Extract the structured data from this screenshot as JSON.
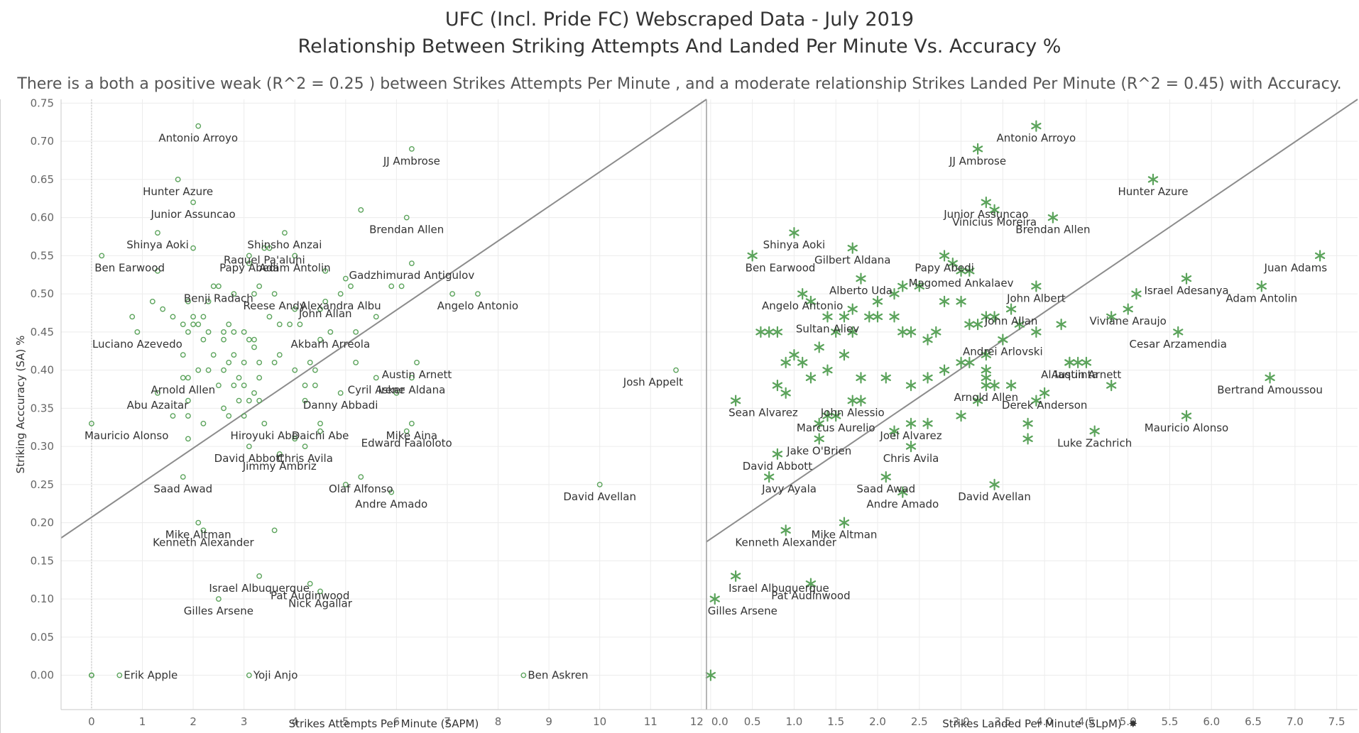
{
  "header": {
    "title_line1": "UFC (Incl. Pride FC) Webscraped Data - July 2019",
    "title_line2": "Relationship Between Striking Attempts And Landed Per Minute Vs. Accuracy %",
    "subtitle": "There is a both a positive weak (R^2 = 0.25 ) between Strikes Attempts Per Minute , and a moderate relationship Strikes Landed Per Minute (R^2 = 0.45) with Accuracy."
  },
  "colors": {
    "marker": "#5ba35b",
    "trend": "#8c8c8c",
    "grid": "#ececec",
    "axis": "#c8c8c8"
  },
  "chart_data": [
    {
      "type": "scatter",
      "marker": "circle-open",
      "xlabel": "Strikes Attempts Per Minute (SAPM)",
      "ylabel": "Striking Acccuracy (SA) %",
      "xlim": [
        -0.6,
        12.1
      ],
      "ylim": [
        -0.045,
        0.755
      ],
      "xticks": [
        "0",
        "1",
        "2",
        "3",
        "4",
        "5",
        "6",
        "7",
        "8",
        "9",
        "10",
        "11",
        "12"
      ],
      "yticks": [
        "0.00",
        "0.05",
        "0.10",
        "0.15",
        "0.20",
        "0.25",
        "0.30",
        "0.35",
        "0.40",
        "0.45",
        "0.50",
        "0.55",
        "0.60",
        "0.65",
        "0.70",
        "0.75"
      ],
      "trendline": [
        [
          -0.6,
          0.18
        ],
        [
          12.1,
          0.755
        ]
      ],
      "labeled_points": [
        {
          "name": "Antonio Arroyo",
          "x": 2.1,
          "y": 0.72
        },
        {
          "name": "JJ Ambrose",
          "x": 6.3,
          "y": 0.69
        },
        {
          "name": "Hunter Azure",
          "x": 1.7,
          "y": 0.65
        },
        {
          "name": "Junior Assuncao",
          "x": 2.0,
          "y": 0.62
        },
        {
          "name": "Brendan Allen",
          "x": 6.2,
          "y": 0.6
        },
        {
          "name": "Shinya Aoki",
          "x": 1.3,
          "y": 0.58
        },
        {
          "name": "Shinsho Anzai",
          "x": 3.8,
          "y": 0.58
        },
        {
          "name": "Raquel Pa'aluhi",
          "x": 3.4,
          "y": 0.56
        },
        {
          "name": "Papy Abedi",
          "x": 3.1,
          "y": 0.55
        },
        {
          "name": "Ben Earwood",
          "x": 0.2,
          "y": 0.55
        },
        {
          "name": "Adam Antolin",
          "x": 4.0,
          "y": 0.55
        },
        {
          "name": "Gadzhimurad Antigulov",
          "x": 6.3,
          "y": 0.54
        },
        {
          "name": "Benji Radach",
          "x": 2.5,
          "y": 0.51
        },
        {
          "name": "Reese Andy",
          "x": 3.6,
          "y": 0.5
        },
        {
          "name": "Angelo Antonio",
          "x": 7.6,
          "y": 0.5
        },
        {
          "name": "Alexandra Albu",
          "x": 4.9,
          "y": 0.5
        },
        {
          "name": "John Allan",
          "x": 4.6,
          "y": 0.49
        },
        {
          "name": "Luciano Azevedo",
          "x": 0.9,
          "y": 0.45
        },
        {
          "name": "Akbarh Arreola",
          "x": 4.7,
          "y": 0.45
        },
        {
          "name": "Austin Arnett",
          "x": 6.4,
          "y": 0.41
        },
        {
          "name": "Arnold Allen",
          "x": 1.8,
          "y": 0.39
        },
        {
          "name": "Cyril Asker",
          "x": 5.6,
          "y": 0.39
        },
        {
          "name": "Irene Aldana",
          "x": 6.3,
          "y": 0.39
        },
        {
          "name": "Josh Appelt",
          "x": 11.5,
          "y": 0.4
        },
        {
          "name": "Danny Abbadi",
          "x": 4.9,
          "y": 0.37
        },
        {
          "name": "Abu Azaitar",
          "x": 1.3,
          "y": 0.37
        },
        {
          "name": "Hiroyuki Abe",
          "x": 3.4,
          "y": 0.33
        },
        {
          "name": "Mauricio Alonso",
          "x": 0.0,
          "y": 0.33
        },
        {
          "name": "Daichi Abe",
          "x": 4.5,
          "y": 0.33
        },
        {
          "name": "Mike Aina",
          "x": 6.3,
          "y": 0.33
        },
        {
          "name": "David Abbott",
          "x": 3.1,
          "y": 0.3
        },
        {
          "name": "Chris Avila",
          "x": 4.2,
          "y": 0.3
        },
        {
          "name": "Edward Faaloloto",
          "x": 6.2,
          "y": 0.32
        },
        {
          "name": "Jimmy Ambriz",
          "x": 3.7,
          "y": 0.29
        },
        {
          "name": "Olaf Alfonso",
          "x": 5.3,
          "y": 0.26
        },
        {
          "name": "Saad Awad",
          "x": 1.8,
          "y": 0.26
        },
        {
          "name": "Andre Amado",
          "x": 5.9,
          "y": 0.24
        },
        {
          "name": "David Avellan",
          "x": 10.0,
          "y": 0.25
        },
        {
          "name": "Mike Altman",
          "x": 2.1,
          "y": 0.2
        },
        {
          "name": "Kenneth Alexander",
          "x": 2.2,
          "y": 0.19
        },
        {
          "name": "Israel Albuquerque",
          "x": 3.3,
          "y": 0.13
        },
        {
          "name": "Pat Audinwood",
          "x": 4.3,
          "y": 0.12
        },
        {
          "name": "Nick Agallar",
          "x": 4.5,
          "y": 0.11
        },
        {
          "name": "Gilles Arsene",
          "x": 2.5,
          "y": 0.1
        },
        {
          "name": "Erik Apple",
          "x": 0.55,
          "y": 0.0
        },
        {
          "name": "Yoji Anjo",
          "x": 3.1,
          "y": 0.0
        },
        {
          "name": "Ben Askren",
          "x": 8.5,
          "y": 0.0
        }
      ],
      "other_points": [
        [
          5.3,
          0.61
        ],
        [
          3.5,
          0.56
        ],
        [
          2.0,
          0.56
        ],
        [
          1.3,
          0.53
        ],
        [
          3.1,
          0.54
        ],
        [
          4.6,
          0.53
        ],
        [
          2.4,
          0.51
        ],
        [
          2.8,
          0.5
        ],
        [
          3.3,
          0.51
        ],
        [
          5.1,
          0.51
        ],
        [
          5.0,
          0.52
        ],
        [
          5.9,
          0.51
        ],
        [
          6.1,
          0.51
        ],
        [
          7.1,
          0.5
        ],
        [
          1.2,
          0.49
        ],
        [
          1.9,
          0.49
        ],
        [
          2.3,
          0.49
        ],
        [
          3.2,
          0.5
        ],
        [
          4.0,
          0.48
        ],
        [
          4.5,
          0.48
        ],
        [
          5.6,
          0.47
        ],
        [
          1.4,
          0.48
        ],
        [
          2.0,
          0.47
        ],
        [
          2.1,
          0.46
        ],
        [
          2.2,
          0.47
        ],
        [
          2.7,
          0.46
        ],
        [
          3.5,
          0.47
        ],
        [
          3.9,
          0.46
        ],
        [
          0.8,
          0.47
        ],
        [
          1.6,
          0.47
        ],
        [
          1.8,
          0.46
        ],
        [
          2.0,
          0.46
        ],
        [
          2.3,
          0.45
        ],
        [
          2.6,
          0.45
        ],
        [
          2.8,
          0.45
        ],
        [
          3.0,
          0.45
        ],
        [
          3.7,
          0.46
        ],
        [
          4.1,
          0.46
        ],
        [
          5.2,
          0.45
        ],
        [
          1.9,
          0.45
        ],
        [
          2.2,
          0.44
        ],
        [
          2.6,
          0.44
        ],
        [
          3.1,
          0.44
        ],
        [
          3.2,
          0.44
        ],
        [
          4.5,
          0.44
        ],
        [
          1.8,
          0.42
        ],
        [
          2.4,
          0.42
        ],
        [
          2.8,
          0.42
        ],
        [
          3.2,
          0.43
        ],
        [
          3.7,
          0.42
        ],
        [
          2.3,
          0.4
        ],
        [
          2.7,
          0.41
        ],
        [
          3.0,
          0.41
        ],
        [
          3.3,
          0.41
        ],
        [
          3.6,
          0.41
        ],
        [
          4.3,
          0.41
        ],
        [
          5.2,
          0.41
        ],
        [
          1.9,
          0.39
        ],
        [
          2.1,
          0.4
        ],
        [
          2.6,
          0.4
        ],
        [
          2.9,
          0.39
        ],
        [
          3.3,
          0.39
        ],
        [
          4.0,
          0.4
        ],
        [
          4.4,
          0.4
        ],
        [
          2.5,
          0.38
        ],
        [
          2.8,
          0.38
        ],
        [
          3.0,
          0.38
        ],
        [
          3.2,
          0.37
        ],
        [
          4.2,
          0.38
        ],
        [
          4.4,
          0.38
        ],
        [
          6.0,
          0.37
        ],
        [
          2.9,
          0.36
        ],
        [
          3.1,
          0.36
        ],
        [
          3.3,
          0.36
        ],
        [
          4.2,
          0.36
        ],
        [
          1.9,
          0.36
        ],
        [
          2.6,
          0.35
        ],
        [
          2.7,
          0.34
        ],
        [
          3.0,
          0.34
        ],
        [
          1.6,
          0.34
        ],
        [
          1.9,
          0.34
        ],
        [
          2.2,
          0.33
        ],
        [
          4.5,
          0.32
        ],
        [
          1.9,
          0.31
        ],
        [
          4.0,
          0.31
        ],
        [
          5.0,
          0.25
        ],
        [
          3.6,
          0.19
        ],
        [
          0.0,
          0.0
        ],
        [
          0.0,
          0.0
        ],
        [
          0.0,
          0.0
        ]
      ]
    },
    {
      "type": "scatter",
      "marker": "asterisk",
      "xlabel": "Strikes Landed Per Minute (SLpM)",
      "ylabel": "",
      "xlim": [
        -0.05,
        7.75
      ],
      "ylim": [
        -0.045,
        0.755
      ],
      "xticks": [
        "0.0",
        "0.5",
        "1.0",
        "1.5",
        "2.0",
        "2.5",
        "3.0",
        "3.5",
        "4.0",
        "4.5",
        "5.0",
        "5.5",
        "6.0",
        "6.5",
        "7.0",
        "7.5"
      ],
      "trendline": [
        [
          -0.05,
          0.175
        ],
        [
          7.75,
          0.755
        ]
      ],
      "labeled_points": [
        {
          "name": "Antonio Arroyo",
          "x": 3.9,
          "y": 0.72
        },
        {
          "name": "JJ Ambrose",
          "x": 3.2,
          "y": 0.69
        },
        {
          "name": "Hunter Azure",
          "x": 5.3,
          "y": 0.65
        },
        {
          "name": "Vinicius Moreira",
          "x": 3.4,
          "y": 0.61
        },
        {
          "name": "Junior Assuncao",
          "x": 3.3,
          "y": 0.62
        },
        {
          "name": "Brendan Allen",
          "x": 4.1,
          "y": 0.6
        },
        {
          "name": "Shinya Aoki",
          "x": 1.0,
          "y": 0.58
        },
        {
          "name": "Gilbert Aldana",
          "x": 1.7,
          "y": 0.56
        },
        {
          "name": "Papy Abedi",
          "x": 2.8,
          "y": 0.55
        },
        {
          "name": "Ben Earwood",
          "x": 0.5,
          "y": 0.55
        },
        {
          "name": "Juan Adams",
          "x": 7.3,
          "y": 0.55
        },
        {
          "name": "Magomed Ankalaev",
          "x": 3.0,
          "y": 0.53
        },
        {
          "name": "Israel Adesanya",
          "x": 5.7,
          "y": 0.52
        },
        {
          "name": "Alberto Uda",
          "x": 1.8,
          "y": 0.52
        },
        {
          "name": "John Albert",
          "x": 3.9,
          "y": 0.51
        },
        {
          "name": "Adam Antolin",
          "x": 6.6,
          "y": 0.51
        },
        {
          "name": "Angelo Antonio",
          "x": 1.1,
          "y": 0.5
        },
        {
          "name": "Viviane Araujo",
          "x": 5.0,
          "y": 0.48
        },
        {
          "name": "John Allan",
          "x": 3.6,
          "y": 0.48
        },
        {
          "name": "Sultan Aliev",
          "x": 1.4,
          "y": 0.47
        },
        {
          "name": "Andrei Arlovski",
          "x": 3.5,
          "y": 0.44
        },
        {
          "name": "Cesar Arzamendia",
          "x": 5.6,
          "y": 0.45
        },
        {
          "name": "Austin Arnett",
          "x": 4.5,
          "y": 0.41
        },
        {
          "name": "Al Iaquinta",
          "x": 4.3,
          "y": 0.41
        },
        {
          "name": "Bertrand Amoussou",
          "x": 6.7,
          "y": 0.39
        },
        {
          "name": "Arnold Allen",
          "x": 3.3,
          "y": 0.38
        },
        {
          "name": "Derek Anderson",
          "x": 4.0,
          "y": 0.37
        },
        {
          "name": "Sean Alvarez",
          "x": 0.3,
          "y": 0.36
        },
        {
          "name": "John Alessio",
          "x": 1.7,
          "y": 0.36
        },
        {
          "name": "Mauricio Alonso",
          "x": 5.7,
          "y": 0.34
        },
        {
          "name": "Marcus Aurelio",
          "x": 1.5,
          "y": 0.34
        },
        {
          "name": "Jake O'Brien",
          "x": 1.3,
          "y": 0.31
        },
        {
          "name": "Joel Alvarez",
          "x": 2.4,
          "y": 0.33
        },
        {
          "name": "Luke Zachrich",
          "x": 4.6,
          "y": 0.32
        },
        {
          "name": "David Abbott",
          "x": 0.8,
          "y": 0.29
        },
        {
          "name": "Chris Avila",
          "x": 2.4,
          "y": 0.3
        },
        {
          "name": "Saad Awad",
          "x": 2.1,
          "y": 0.26
        },
        {
          "name": "Javy Ayala",
          "x": 0.7,
          "y": 0.26
        },
        {
          "name": "Andre Amado",
          "x": 2.3,
          "y": 0.24
        },
        {
          "name": "David Avellan",
          "x": 3.4,
          "y": 0.25
        },
        {
          "name": "Mike Altman",
          "x": 1.6,
          "y": 0.2
        },
        {
          "name": "Kenneth Alexander",
          "x": 0.9,
          "y": 0.19
        },
        {
          "name": "Israel Albuquerque",
          "x": 0.3,
          "y": 0.13
        },
        {
          "name": "Pat Audinwood",
          "x": 1.2,
          "y": 0.12
        },
        {
          "name": "Gilles Arsene",
          "x": 0.05,
          "y": 0.1
        }
      ],
      "other_points": [
        [
          0.6,
          0.45
        ],
        [
          0.7,
          0.45
        ],
        [
          0.8,
          0.45
        ],
        [
          1.0,
          0.42
        ],
        [
          1.1,
          0.41
        ],
        [
          1.3,
          0.43
        ],
        [
          1.5,
          0.45
        ],
        [
          1.6,
          0.47
        ],
        [
          1.7,
          0.48
        ],
        [
          1.9,
          0.47
        ],
        [
          2.0,
          0.49
        ],
        [
          2.2,
          0.5
        ],
        [
          2.3,
          0.51
        ],
        [
          2.5,
          0.51
        ],
        [
          2.2,
          0.47
        ],
        [
          2.3,
          0.45
        ],
        [
          2.4,
          0.45
        ],
        [
          2.6,
          0.44
        ],
        [
          2.7,
          0.45
        ],
        [
          2.8,
          0.49
        ],
        [
          3.0,
          0.49
        ],
        [
          3.1,
          0.46
        ],
        [
          3.2,
          0.46
        ],
        [
          3.3,
          0.47
        ],
        [
          3.4,
          0.47
        ],
        [
          3.7,
          0.46
        ],
        [
          3.9,
          0.45
        ],
        [
          4.2,
          0.46
        ],
        [
          4.8,
          0.47
        ],
        [
          5.1,
          0.5
        ],
        [
          1.2,
          0.39
        ],
        [
          1.4,
          0.4
        ],
        [
          1.6,
          0.42
        ],
        [
          1.8,
          0.39
        ],
        [
          2.1,
          0.39
        ],
        [
          2.4,
          0.38
        ],
        [
          2.6,
          0.39
        ],
        [
          2.8,
          0.4
        ],
        [
          3.1,
          0.41
        ],
        [
          3.3,
          0.39
        ],
        [
          3.4,
          0.38
        ],
        [
          3.6,
          0.38
        ],
        [
          3.9,
          0.36
        ],
        [
          4.3,
          0.41
        ],
        [
          4.4,
          0.41
        ],
        [
          4.8,
          0.38
        ],
        [
          0.8,
          0.38
        ],
        [
          0.9,
          0.37
        ],
        [
          1.3,
          0.33
        ],
        [
          1.4,
          0.34
        ],
        [
          1.8,
          0.36
        ],
        [
          2.2,
          0.32
        ],
        [
          2.6,
          0.33
        ],
        [
          3.0,
          0.34
        ],
        [
          3.2,
          0.36
        ],
        [
          3.8,
          0.33
        ],
        [
          3.8,
          0.31
        ],
        [
          0.9,
          0.41
        ],
        [
          1.7,
          0.45
        ],
        [
          2.0,
          0.47
        ],
        [
          2.9,
          0.54
        ],
        [
          3.1,
          0.53
        ],
        [
          3.0,
          0.41
        ],
        [
          3.3,
          0.4
        ],
        [
          3.3,
          0.42
        ],
        [
          1.2,
          0.49
        ],
        [
          0.0,
          0.0
        ]
      ]
    }
  ]
}
